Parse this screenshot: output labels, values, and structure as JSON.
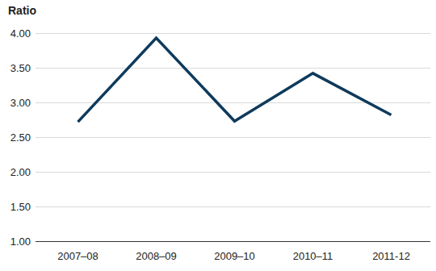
{
  "chart_data": {
    "type": "line",
    "y_label": "Ratio",
    "categories": [
      "2007–08",
      "2008–09",
      "2009–10",
      "2010–11",
      "2011-12"
    ],
    "values": [
      2.72,
      3.93,
      2.73,
      3.42,
      2.82
    ],
    "color": "#0e3a5c",
    "ylim": [
      1,
      4
    ],
    "yticks": [
      {
        "value": 1,
        "label": "1.00"
      },
      {
        "value": 1.5,
        "label": "1.50"
      },
      {
        "value": 2,
        "label": "2.00"
      },
      {
        "value": 2.5,
        "label": "2.50"
      },
      {
        "value": 3,
        "label": "3.00"
      },
      {
        "value": 3.5,
        "label": "3.50"
      },
      {
        "value": 4,
        "label": "4.00"
      }
    ],
    "grid": true
  }
}
